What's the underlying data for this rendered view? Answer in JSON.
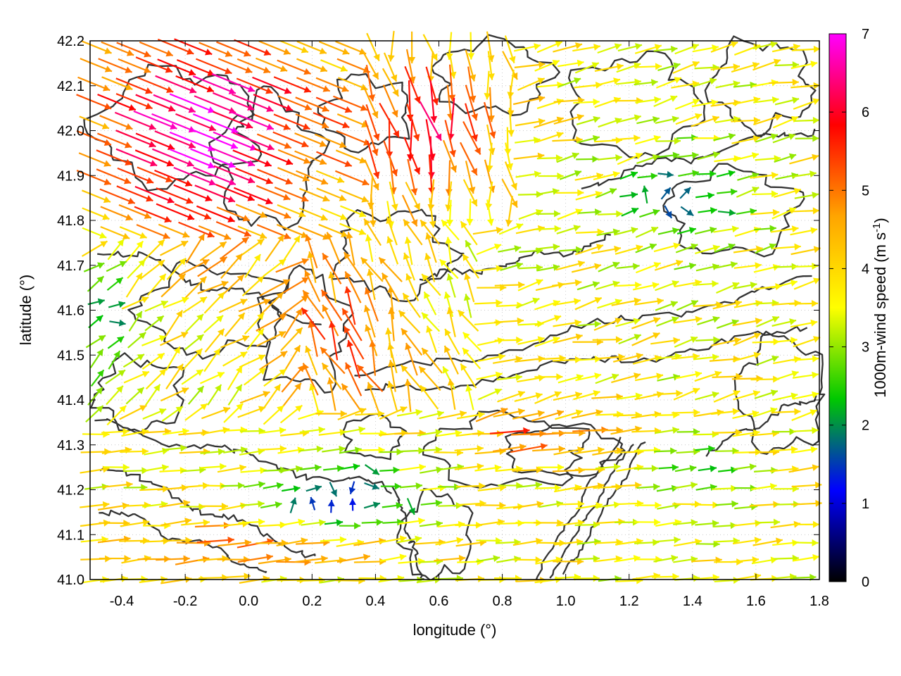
{
  "chart_data": {
    "type": "vector-field",
    "xlabel": "longitude (°)",
    "ylabel": "latitude (°)",
    "xlim": [
      -0.5,
      1.8
    ],
    "ylim": [
      41.0,
      42.2
    ],
    "xticks": [
      "-0.4",
      "-0.2",
      "0.0",
      "0.2",
      "0.4",
      "0.6",
      "0.8",
      "1.0",
      "1.2",
      "1.4",
      "1.6",
      "1.8"
    ],
    "yticks": [
      "41.0",
      "41.1",
      "41.2",
      "41.3",
      "41.4",
      "41.5",
      "41.6",
      "41.7",
      "41.8",
      "41.9",
      "42.0",
      "42.1",
      "42.2"
    ],
    "grid": true,
    "colorbar": {
      "label_main": "1000m-wind speed (m s",
      "label_sup": "-1",
      "label_end": ")",
      "range": [
        0,
        7
      ],
      "ticks": [
        "0",
        "1",
        "2",
        "3",
        "4",
        "5",
        "6",
        "7"
      ],
      "colors": [
        "#000000",
        "#0000ff",
        "#00c800",
        "#ffff00",
        "#ffa500",
        "#ff0000",
        "#ff00ff"
      ]
    },
    "contour_color": "#333333",
    "wind_regions": [
      {
        "region": "northwest",
        "lon": [
          -0.5,
          0.3
        ],
        "lat": [
          41.7,
          42.2
        ],
        "speed_m_s": 6.8,
        "direction": "southeast"
      },
      {
        "region": "north-center",
        "lon": [
          0.3,
          0.9
        ],
        "lat": [
          41.8,
          42.2
        ],
        "speed_m_s": 6.0,
        "direction": "south"
      },
      {
        "region": "central",
        "lon": [
          0.2,
          1.0
        ],
        "lat": [
          41.4,
          41.8
        ],
        "speed_m_s": 5.5,
        "direction": "northwest"
      },
      {
        "region": "east",
        "lon": [
          0.9,
          1.8
        ],
        "lat": [
          41.4,
          42.2
        ],
        "speed_m_s": 3.5,
        "direction": "east"
      },
      {
        "region": "south",
        "lon": [
          -0.5,
          1.8
        ],
        "lat": [
          41.0,
          41.4
        ],
        "speed_m_s": 4.0,
        "direction": "east"
      },
      {
        "region": "calm-southwest",
        "lon": [
          0.1,
          0.6
        ],
        "lat": [
          41.1,
          41.3
        ],
        "speed_m_s": 1.5,
        "direction": "variable"
      }
    ]
  }
}
